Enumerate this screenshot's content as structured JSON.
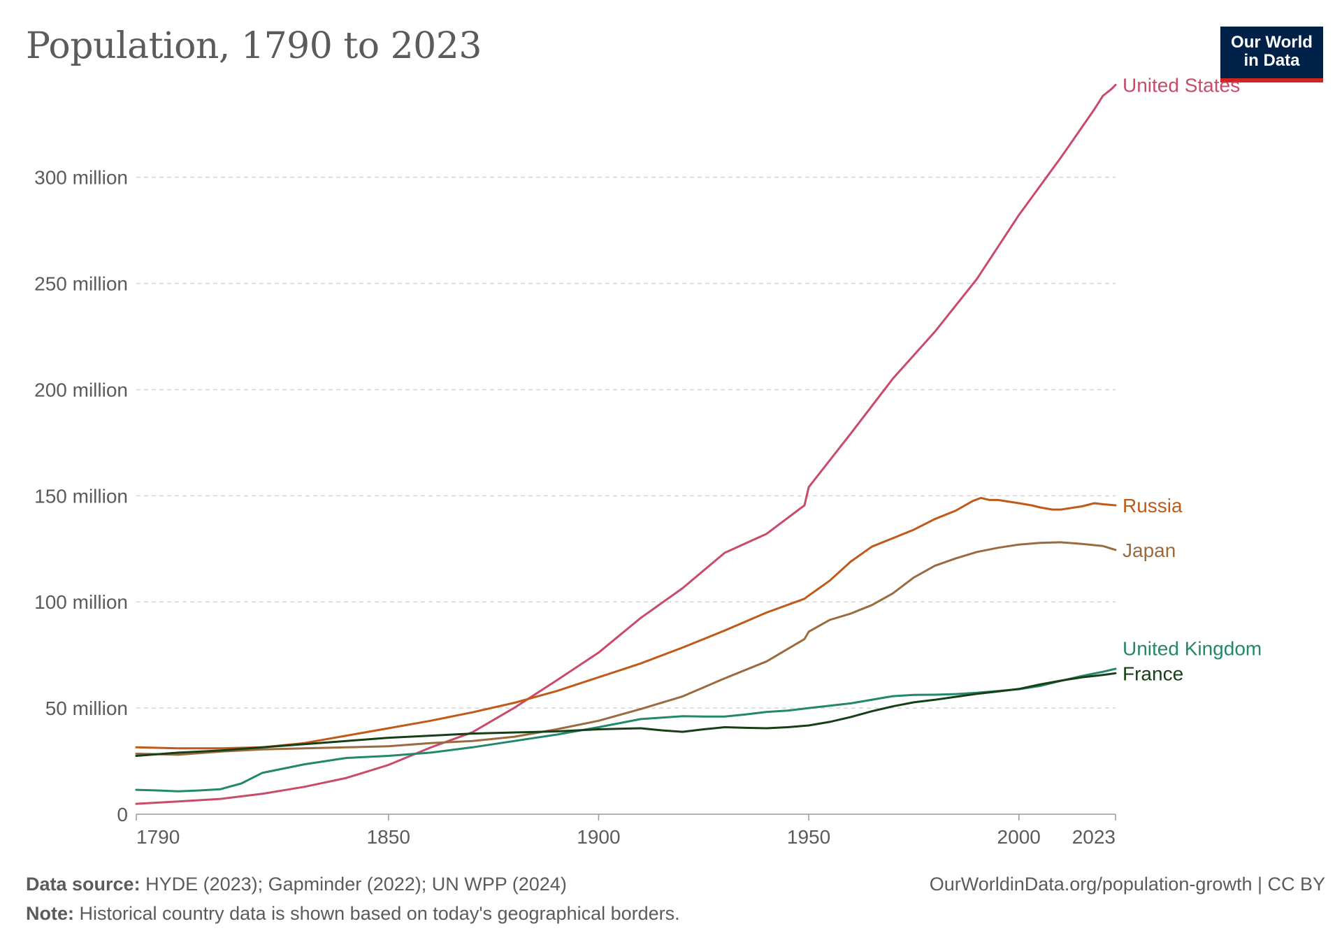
{
  "title": "Population, 1790 to 2023",
  "logo": {
    "line1": "Our World",
    "line2": "in Data"
  },
  "footer": {
    "source_label": "Data source:",
    "source_text": "HYDE (2023); Gapminder (2022); UN WPP (2024)",
    "note_label": "Note:",
    "note_text": "Historical country data is shown based on today's geographical borders.",
    "url": "OurWorldinData.org/population-growth | CC BY"
  },
  "colors": {
    "United States": "#c94a69",
    "Russia": "#c15a18",
    "Japan": "#9a6b3e",
    "United Kingdom": "#23876c",
    "France": "#173f15",
    "grid": "#d6d6d6",
    "axis_text": "#5b5b5b"
  },
  "chart_data": {
    "type": "line",
    "xlim": [
      1790,
      2023
    ],
    "ylim": [
      0,
      345000000
    ],
    "x_ticks": [
      "1790",
      "1850",
      "1900",
      "1950",
      "2000",
      "2023"
    ],
    "y_ticks": [
      "0",
      "50 million",
      "100 million",
      "150 million",
      "200 million",
      "250 million",
      "300 million"
    ],
    "grid": "horizontal dashed",
    "legend": "end-of-line labels (right)",
    "series": [
      {
        "name": "United States",
        "points": [
          [
            1790,
            4.9
          ],
          [
            1800,
            6.0
          ],
          [
            1810,
            7.2
          ],
          [
            1820,
            9.6
          ],
          [
            1830,
            12.9
          ],
          [
            1840,
            17.1
          ],
          [
            1850,
            23.2
          ],
          [
            1860,
            31.4
          ],
          [
            1870,
            38.6
          ],
          [
            1880,
            50.2
          ],
          [
            1890,
            63.0
          ],
          [
            1900,
            76.1
          ],
          [
            1910,
            92.4
          ],
          [
            1920,
            106.5
          ],
          [
            1930,
            123.1
          ],
          [
            1940,
            132.1
          ],
          [
            1949,
            145.5
          ],
          [
            1950,
            154.1
          ],
          [
            1960,
            179.3
          ],
          [
            1970,
            205.1
          ],
          [
            1980,
            227.2
          ],
          [
            1990,
            252.1
          ],
          [
            2000,
            282.2
          ],
          [
            2010,
            309.3
          ],
          [
            2018,
            332.1
          ],
          [
            2020,
            338.4
          ],
          [
            2022,
            341.5
          ],
          [
            2023,
            343.5
          ]
        ]
      },
      {
        "name": "Russia",
        "points": [
          [
            1790,
            31.5
          ],
          [
            1800,
            31.0
          ],
          [
            1810,
            31.0
          ],
          [
            1820,
            31.5
          ],
          [
            1830,
            33.5
          ],
          [
            1840,
            37.0
          ],
          [
            1850,
            40.5
          ],
          [
            1860,
            44.0
          ],
          [
            1870,
            48.0
          ],
          [
            1880,
            52.5
          ],
          [
            1890,
            58.0
          ],
          [
            1900,
            64.5
          ],
          [
            1910,
            71.0
          ],
          [
            1920,
            78.5
          ],
          [
            1930,
            86.5
          ],
          [
            1940,
            95.0
          ],
          [
            1949,
            101.5
          ],
          [
            1950,
            103.0
          ],
          [
            1955,
            110.0
          ],
          [
            1960,
            119.0
          ],
          [
            1965,
            126.0
          ],
          [
            1970,
            130.0
          ],
          [
            1975,
            134.0
          ],
          [
            1980,
            139.0
          ],
          [
            1985,
            143.0
          ],
          [
            1989,
            147.5
          ],
          [
            1991,
            149.0
          ],
          [
            1993,
            148.0
          ],
          [
            1995,
            148.0
          ],
          [
            2000,
            146.5
          ],
          [
            2003,
            145.5
          ],
          [
            2005,
            144.5
          ],
          [
            2008,
            143.5
          ],
          [
            2010,
            143.5
          ],
          [
            2015,
            145.0
          ],
          [
            2018,
            146.5
          ],
          [
            2020,
            146.0
          ],
          [
            2023,
            145.5
          ]
        ]
      },
      {
        "name": "Japan",
        "points": [
          [
            1790,
            28.5
          ],
          [
            1800,
            28.0
          ],
          [
            1810,
            29.5
          ],
          [
            1820,
            30.5
          ],
          [
            1830,
            31.0
          ],
          [
            1840,
            31.5
          ],
          [
            1850,
            32.0
          ],
          [
            1860,
            33.5
          ],
          [
            1870,
            34.5
          ],
          [
            1880,
            36.5
          ],
          [
            1890,
            40.0
          ],
          [
            1900,
            44.0
          ],
          [
            1910,
            49.5
          ],
          [
            1920,
            55.5
          ],
          [
            1930,
            64.0
          ],
          [
            1940,
            72.0
          ],
          [
            1949,
            82.5
          ],
          [
            1950,
            86.0
          ],
          [
            1955,
            91.5
          ],
          [
            1960,
            94.5
          ],
          [
            1965,
            98.5
          ],
          [
            1970,
            104.0
          ],
          [
            1975,
            111.5
          ],
          [
            1980,
            117.0
          ],
          [
            1985,
            120.5
          ],
          [
            1990,
            123.5
          ],
          [
            1995,
            125.5
          ],
          [
            2000,
            127.0
          ],
          [
            2005,
            127.8
          ],
          [
            2010,
            128.1
          ],
          [
            2015,
            127.3
          ],
          [
            2020,
            126.3
          ],
          [
            2023,
            124.5
          ]
        ]
      },
      {
        "name": "United Kingdom",
        "points": [
          [
            1790,
            11.5
          ],
          [
            1795,
            11.2
          ],
          [
            1800,
            10.8
          ],
          [
            1805,
            11.2
          ],
          [
            1810,
            11.8
          ],
          [
            1815,
            14.5
          ],
          [
            1820,
            19.5
          ],
          [
            1830,
            23.5
          ],
          [
            1840,
            26.5
          ],
          [
            1850,
            27.5
          ],
          [
            1860,
            29.0
          ],
          [
            1870,
            31.5
          ],
          [
            1880,
            34.5
          ],
          [
            1890,
            37.5
          ],
          [
            1900,
            41.0
          ],
          [
            1910,
            44.8
          ],
          [
            1920,
            46.2
          ],
          [
            1925,
            46.0
          ],
          [
            1930,
            46.0
          ],
          [
            1935,
            47.0
          ],
          [
            1940,
            48.2
          ],
          [
            1945,
            48.8
          ],
          [
            1950,
            50.0
          ],
          [
            1960,
            52.2
          ],
          [
            1970,
            55.6
          ],
          [
            1975,
            56.2
          ],
          [
            1980,
            56.3
          ],
          [
            1985,
            56.6
          ],
          [
            1990,
            57.2
          ],
          [
            1995,
            58.0
          ],
          [
            2000,
            58.9
          ],
          [
            2005,
            60.4
          ],
          [
            2010,
            62.8
          ],
          [
            2015,
            65.1
          ],
          [
            2020,
            67.1
          ],
          [
            2023,
            68.5
          ]
        ]
      },
      {
        "name": "France",
        "points": [
          [
            1790,
            27.5
          ],
          [
            1800,
            29.0
          ],
          [
            1810,
            30.0
          ],
          [
            1820,
            31.5
          ],
          [
            1830,
            33.0
          ],
          [
            1840,
            34.5
          ],
          [
            1850,
            36.0
          ],
          [
            1860,
            37.0
          ],
          [
            1870,
            38.0
          ],
          [
            1880,
            38.5
          ],
          [
            1890,
            39.0
          ],
          [
            1900,
            40.0
          ],
          [
            1910,
            40.5
          ],
          [
            1915,
            39.5
          ],
          [
            1920,
            38.8
          ],
          [
            1925,
            40.0
          ],
          [
            1930,
            41.0
          ],
          [
            1935,
            40.7
          ],
          [
            1940,
            40.5
          ],
          [
            1945,
            41.0
          ],
          [
            1950,
            41.8
          ],
          [
            1955,
            43.5
          ],
          [
            1960,
            45.8
          ],
          [
            1965,
            48.5
          ],
          [
            1970,
            50.8
          ],
          [
            1975,
            52.7
          ],
          [
            1980,
            53.9
          ],
          [
            1985,
            55.3
          ],
          [
            1990,
            56.7
          ],
          [
            1995,
            57.8
          ],
          [
            2000,
            59.0
          ],
          [
            2005,
            61.1
          ],
          [
            2010,
            62.9
          ],
          [
            2015,
            64.5
          ],
          [
            2020,
            65.6
          ],
          [
            2023,
            66.4
          ]
        ]
      }
    ]
  }
}
